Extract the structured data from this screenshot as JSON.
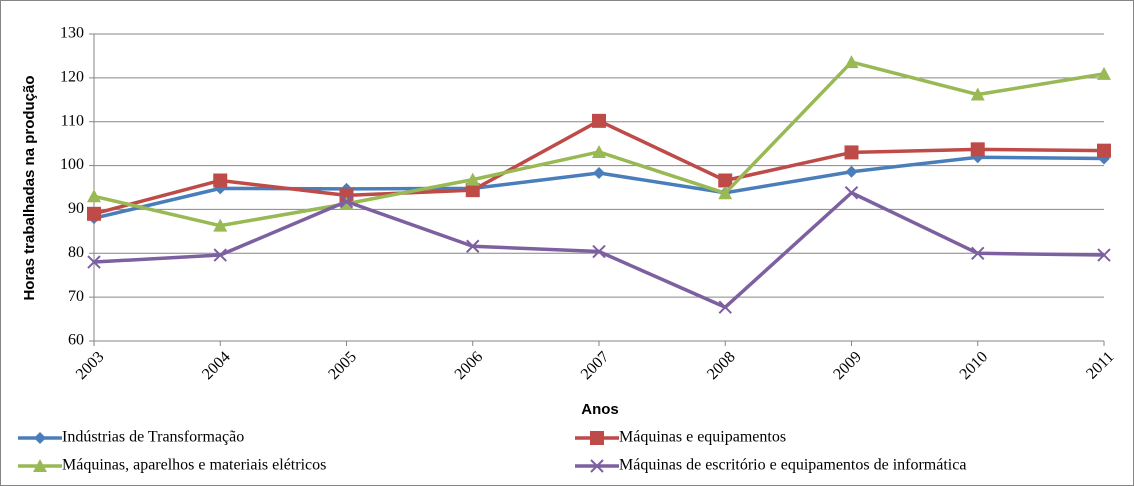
{
  "chart_data": {
    "type": "line",
    "x_label": "Anos",
    "y_label": "Horas trabalhadas na produção",
    "categories": [
      "2003",
      "2004",
      "2005",
      "2006",
      "2007",
      "2008",
      "2009",
      "2010",
      "2011"
    ],
    "ylim": [
      60,
      130
    ],
    "yticks": [
      60,
      70,
      80,
      90,
      100,
      110,
      120,
      130
    ],
    "grid": true,
    "series": [
      {
        "name": "Indústrias de Transformação",
        "color": "#4a7ebb",
        "marker": "diamond",
        "values": [
          88,
          94.8,
          94.7,
          94.8,
          98.3,
          93.8,
          98.6,
          101.9,
          101.6
        ]
      },
      {
        "name": "Máquinas e equipamentos",
        "color": "#be4b48",
        "marker": "square",
        "values": [
          89,
          96.6,
          93.2,
          94.4,
          110.2,
          96.6,
          103,
          103.7,
          103.4
        ]
      },
      {
        "name": "Máquinas, aparelhos e materiais elétricos",
        "color": "#98b954",
        "marker": "triangle",
        "values": [
          93,
          86.3,
          91.3,
          96.8,
          103.1,
          93.7,
          123.6,
          116.2,
          120.9
        ]
      },
      {
        "name": "Máquinas de escritório e equipamentos de informática",
        "color": "#7d60a0",
        "marker": "x",
        "values": [
          78,
          79.6,
          91.8,
          81.6,
          80.4,
          67.7,
          93.8,
          80,
          79.6
        ]
      }
    ]
  }
}
